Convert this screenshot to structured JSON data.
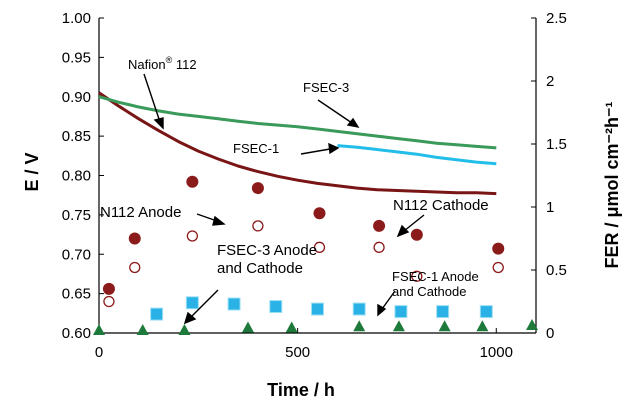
{
  "chart_data": {
    "type": "line",
    "xlabel": "Time / h",
    "ylabel_left": "E / V",
    "ylabel_right": "FER / μmol cm⁻²h⁻¹",
    "xlim": [
      0,
      1100
    ],
    "ylim_left": [
      0.6,
      1.0
    ],
    "ylim_right": [
      0,
      2.5
    ],
    "x_ticks": [
      0,
      500,
      1000
    ],
    "y_ticks_left": [
      "0.60",
      "0.65",
      "0.70",
      "0.75",
      "0.80",
      "0.85",
      "0.90",
      "0.95",
      "1.00"
    ],
    "y_ticks_right": [
      "0",
      "0.5",
      "1",
      "1.5",
      "2",
      "2.5"
    ],
    "grid": false,
    "series": [
      {
        "name": "Nafion® 112",
        "axis": "left",
        "color": "#7a1515",
        "x": [
          0,
          50,
          100,
          150,
          200,
          250,
          300,
          350,
          400,
          450,
          500,
          550,
          600,
          650,
          700,
          750,
          800,
          850,
          900,
          950,
          1000
        ],
        "values": [
          0.905,
          0.888,
          0.872,
          0.857,
          0.843,
          0.831,
          0.821,
          0.812,
          0.805,
          0.799,
          0.794,
          0.79,
          0.787,
          0.784,
          0.782,
          0.781,
          0.78,
          0.779,
          0.778,
          0.778,
          0.777
        ]
      },
      {
        "name": "FSEC-3",
        "axis": "left",
        "color": "#3a9a5a",
        "x": [
          0,
          50,
          100,
          150,
          200,
          250,
          300,
          350,
          400,
          450,
          500,
          550,
          600,
          650,
          700,
          750,
          800,
          850,
          900,
          950,
          1000
        ],
        "values": [
          0.9,
          0.893,
          0.887,
          0.882,
          0.878,
          0.875,
          0.872,
          0.869,
          0.866,
          0.864,
          0.862,
          0.859,
          0.856,
          0.853,
          0.85,
          0.847,
          0.844,
          0.841,
          0.839,
          0.837,
          0.835
        ]
      },
      {
        "name": "FSEC-1",
        "axis": "left",
        "color": "#22bde8",
        "x": [
          600,
          650,
          700,
          750,
          800,
          850,
          900,
          950,
          1000
        ],
        "values": [
          0.838,
          0.836,
          0.833,
          0.83,
          0.827,
          0.823,
          0.82,
          0.817,
          0.815
        ]
      },
      {
        "name": "N112 Anode",
        "axis": "right",
        "marker": "open-circle",
        "color": "#8b1a1a",
        "x": [
          25,
          90,
          235,
          400,
          555,
          705,
          800,
          1005
        ],
        "values": [
          0.25,
          0.52,
          0.77,
          0.85,
          0.68,
          0.68,
          0.45,
          0.52
        ]
      },
      {
        "name": "N112 Cathode",
        "axis": "right",
        "marker": "filled-circle",
        "color": "#8b1a1a",
        "x": [
          25,
          90,
          235,
          400,
          555,
          705,
          800,
          1005
        ],
        "values": [
          0.35,
          0.75,
          1.2,
          1.15,
          0.95,
          0.85,
          0.78,
          0.67
        ]
      },
      {
        "name": "FSEC-1 Anode and Cathode",
        "axis": "right",
        "marker": "square",
        "color": "#2ab2e6",
        "x": [
          145,
          235,
          340,
          445,
          550,
          655,
          760,
          865,
          975
        ],
        "values": [
          0.15,
          0.24,
          0.23,
          0.21,
          0.19,
          0.19,
          0.17,
          0.17,
          0.17
        ]
      },
      {
        "name": "FSEC-3 Anode and Cathode",
        "axis": "right",
        "marker": "triangle",
        "color": "#1e7a3a",
        "x": [
          0,
          110,
          215,
          375,
          485,
          655,
          755,
          870,
          965,
          1090
        ],
        "values": [
          0.0,
          0.0,
          0.0,
          0.02,
          0.02,
          0.03,
          0.03,
          0.03,
          0.03,
          0.04
        ]
      }
    ],
    "annotations": [
      {
        "text": "Nafion",
        "sup": "®",
        "tail": " 112"
      },
      {
        "text": "FSEC-3"
      },
      {
        "text": "FSEC-1"
      },
      {
        "text": "N112 Anode"
      },
      {
        "text": "N112 Cathode"
      },
      {
        "text": "FSEC-3 Anode",
        "line2": "and Cathode"
      },
      {
        "text": "FSEC-1 Anode",
        "line2": "and Cathode"
      }
    ]
  }
}
